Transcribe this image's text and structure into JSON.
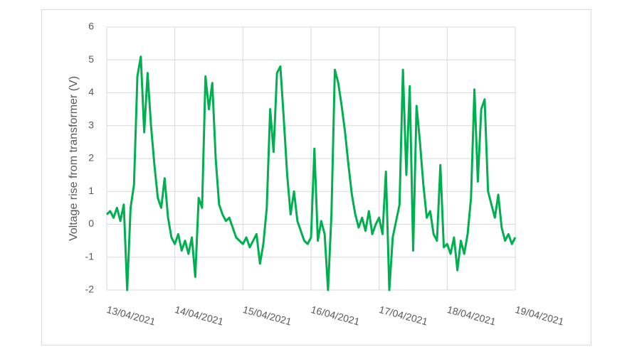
{
  "chart_data": {
    "type": "line",
    "y_label": "Voltage rise from transformer (V)",
    "x": [
      0,
      0.05,
      0.1,
      0.15,
      0.2,
      0.25,
      0.3,
      0.35,
      0.4,
      0.45,
      0.5,
      0.55,
      0.6,
      0.65,
      0.7,
      0.75,
      0.8,
      0.85,
      0.9,
      0.95,
      1,
      1.05,
      1.1,
      1.15,
      1.2,
      1.25,
      1.3,
      1.35,
      1.4,
      1.45,
      1.5,
      1.55,
      1.6,
      1.65,
      1.7,
      1.75,
      1.8,
      1.85,
      1.9,
      1.95,
      2,
      2.05,
      2.1,
      2.15,
      2.2,
      2.25,
      2.3,
      2.35,
      2.4,
      2.45,
      2.5,
      2.55,
      2.6,
      2.65,
      2.7,
      2.75,
      2.8,
      2.85,
      2.9,
      2.95,
      3,
      3.05,
      3.1,
      3.15,
      3.2,
      3.25,
      3.3,
      3.35,
      3.4,
      3.45,
      3.5,
      3.55,
      3.6,
      3.65,
      3.7,
      3.75,
      3.8,
      3.85,
      3.9,
      3.95,
      4,
      4.05,
      4.1,
      4.15,
      4.2,
      4.25,
      4.3,
      4.35,
      4.4,
      4.45,
      4.5,
      4.55,
      4.6,
      4.65,
      4.7,
      4.75,
      4.8,
      4.85,
      4.9,
      4.95,
      5,
      5.05,
      5.1,
      5.15,
      5.2,
      5.25,
      5.3,
      5.35,
      5.4,
      5.45,
      5.5,
      5.55,
      5.6,
      5.65,
      5.7,
      5.75,
      5.8,
      5.85,
      5.9,
      5.95,
      6
    ],
    "series": [
      {
        "name": "Voltage rise",
        "color": "#00b050",
        "values": [
          0.3,
          0.4,
          0.2,
          0.5,
          0.1,
          0.6,
          -2.0,
          0.5,
          1.2,
          4.5,
          5.1,
          2.8,
          4.6,
          3.0,
          1.8,
          0.8,
          0.5,
          1.4,
          0.2,
          -0.4,
          -0.6,
          -0.3,
          -0.8,
          -0.5,
          -0.9,
          -0.4,
          -1.6,
          0.8,
          0.5,
          4.5,
          3.5,
          4.3,
          2.0,
          0.6,
          0.3,
          0.1,
          0.2,
          -0.1,
          -0.4,
          -0.5,
          -0.6,
          -0.4,
          -0.7,
          -0.5,
          -0.3,
          -1.2,
          -0.6,
          0.5,
          3.5,
          2.2,
          4.6,
          4.8,
          3.2,
          1.5,
          0.3,
          1.0,
          0.1,
          -0.2,
          -0.5,
          -0.6,
          -0.4,
          2.3,
          -0.5,
          0.1,
          -0.3,
          -2.0,
          0.3,
          4.7,
          4.3,
          3.6,
          2.8,
          1.8,
          0.9,
          0.3,
          -0.1,
          0.2,
          -0.2,
          0.4,
          -0.3,
          0.0,
          0.2,
          -0.3,
          1.6,
          -2.0,
          -0.4,
          0.1,
          0.6,
          4.7,
          1.5,
          4.2,
          -0.8,
          3.6,
          2.5,
          1.2,
          0.2,
          0.4,
          -0.3,
          -0.5,
          1.8,
          -0.7,
          -0.6,
          -0.9,
          -0.4,
          -1.4,
          -0.5,
          -0.9,
          -0.3,
          0.8,
          4.1,
          1.3,
          3.5,
          3.8,
          1.0,
          0.6,
          0.2,
          0.9,
          -0.1,
          -0.5,
          -0.3,
          -0.6,
          -0.4
        ]
      }
    ],
    "xlim": [
      0,
      6
    ],
    "xticks": [
      {
        "value": 0,
        "label": "13/04/2021"
      },
      {
        "value": 1,
        "label": "14/04/2021"
      },
      {
        "value": 2,
        "label": "15/04/2021"
      },
      {
        "value": 3,
        "label": "16/04/2021"
      },
      {
        "value": 4,
        "label": "17/04/2021"
      },
      {
        "value": 5,
        "label": "18/04/2021"
      },
      {
        "value": 6,
        "label": "19/04/2021"
      }
    ],
    "ylim": [
      -2,
      6
    ],
    "yticks": [
      -2,
      -1,
      0,
      1,
      2,
      3,
      4,
      5,
      6
    ],
    "grid": true
  }
}
